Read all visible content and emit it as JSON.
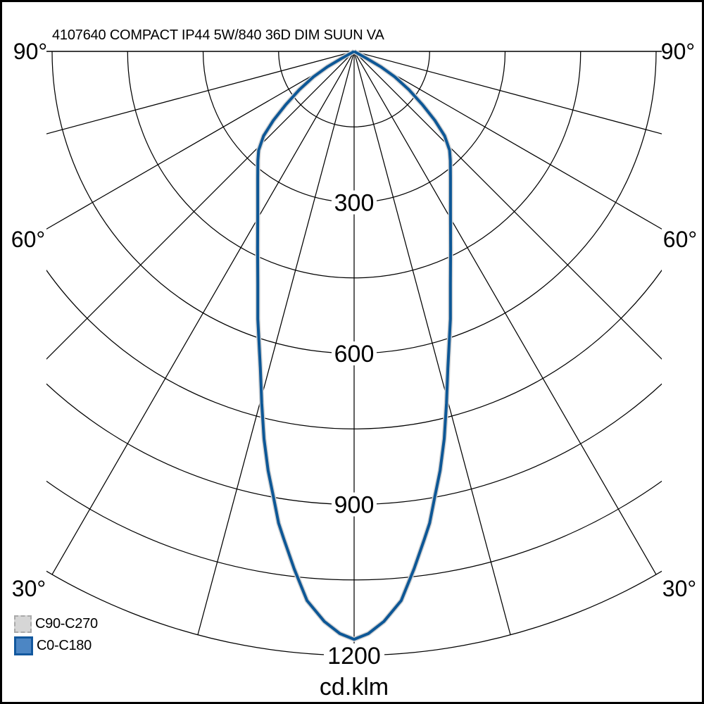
{
  "title": "4107640 COMPACT IP44 5W/840 36D DIM SUUN VA",
  "unit_label": "cd.klm",
  "colors": {
    "background": "#ffffff",
    "grid": "#000000",
    "text": "#000000",
    "curve_blue": "#0d5796",
    "curve_gray": "#d2d2d2",
    "legend_gray_fill": "#d6d6d6",
    "legend_gray_border": "#a9a9a9",
    "legend_blue_fill": "#4c86c4",
    "legend_blue_border": "#12589e"
  },
  "legend": [
    {
      "label": "C90-C270",
      "swatch": "gray"
    },
    {
      "label": "C0-C180",
      "swatch": "blue"
    }
  ],
  "chart_data": {
    "type": "polar",
    "subtype": "luminous-intensity-distribution",
    "title": "4107640 COMPACT IP44 5W/840 36D DIM SUUN VA",
    "units": "cd.klm",
    "grid": true,
    "angle_tick_labels": [
      "90°",
      "60°",
      "30°"
    ],
    "angle_ticks_deg": [
      90,
      60,
      30
    ],
    "ray_step_deg": 15,
    "radial_tick_labels": [
      "300",
      "600",
      "900",
      "1200"
    ],
    "radial_ticks": [
      300,
      600,
      900,
      1200
    ],
    "radial_arc_step": 150,
    "radial_max": 1200,
    "legend_position": "bottom-left",
    "series": [
      {
        "name": "C90-C270",
        "note": "coincides with C0-C180 (symmetric beam), drawn in light gray beneath",
        "points_deg_cd": [
          [
            62.5,
            0
          ],
          [
            61,
            29
          ],
          [
            60,
            61
          ],
          [
            58,
            95
          ],
          [
            55,
            133
          ],
          [
            52,
            173
          ],
          [
            49.5,
            211
          ],
          [
            47,
            246
          ],
          [
            44,
            273
          ],
          [
            41.4,
            289
          ],
          [
            37.3,
            316
          ],
          [
            30.8,
            374
          ],
          [
            26.1,
            436
          ],
          [
            22.5,
            500
          ],
          [
            19.8,
            565
          ],
          [
            16.5,
            656
          ],
          [
            14.7,
            723
          ],
          [
            13.1,
            790
          ],
          [
            11.6,
            850
          ],
          [
            10.2,
            902
          ],
          [
            9.1,
            949
          ],
          [
            8.2,
            979
          ],
          [
            6.6,
            1035
          ],
          [
            4.9,
            1095
          ],
          [
            3,
            1134
          ],
          [
            1.4,
            1157
          ],
          [
            0,
            1168
          ]
        ]
      },
      {
        "name": "C0-C180",
        "points_deg_cd": [
          [
            62.5,
            0
          ],
          [
            61,
            29
          ],
          [
            60,
            61
          ],
          [
            58,
            95
          ],
          [
            55,
            133
          ],
          [
            52,
            173
          ],
          [
            49.5,
            211
          ],
          [
            47,
            246
          ],
          [
            44,
            273
          ],
          [
            41.4,
            289
          ],
          [
            37.3,
            316
          ],
          [
            30.8,
            374
          ],
          [
            26.1,
            436
          ],
          [
            22.5,
            500
          ],
          [
            19.8,
            565
          ],
          [
            16.5,
            656
          ],
          [
            14.7,
            723
          ],
          [
            13.1,
            790
          ],
          [
            11.6,
            850
          ],
          [
            10.2,
            902
          ],
          [
            9.1,
            949
          ],
          [
            8.2,
            979
          ],
          [
            6.6,
            1035
          ],
          [
            4.9,
            1095
          ],
          [
            3,
            1134
          ],
          [
            1.4,
            1157
          ],
          [
            0,
            1168
          ]
        ]
      }
    ]
  }
}
